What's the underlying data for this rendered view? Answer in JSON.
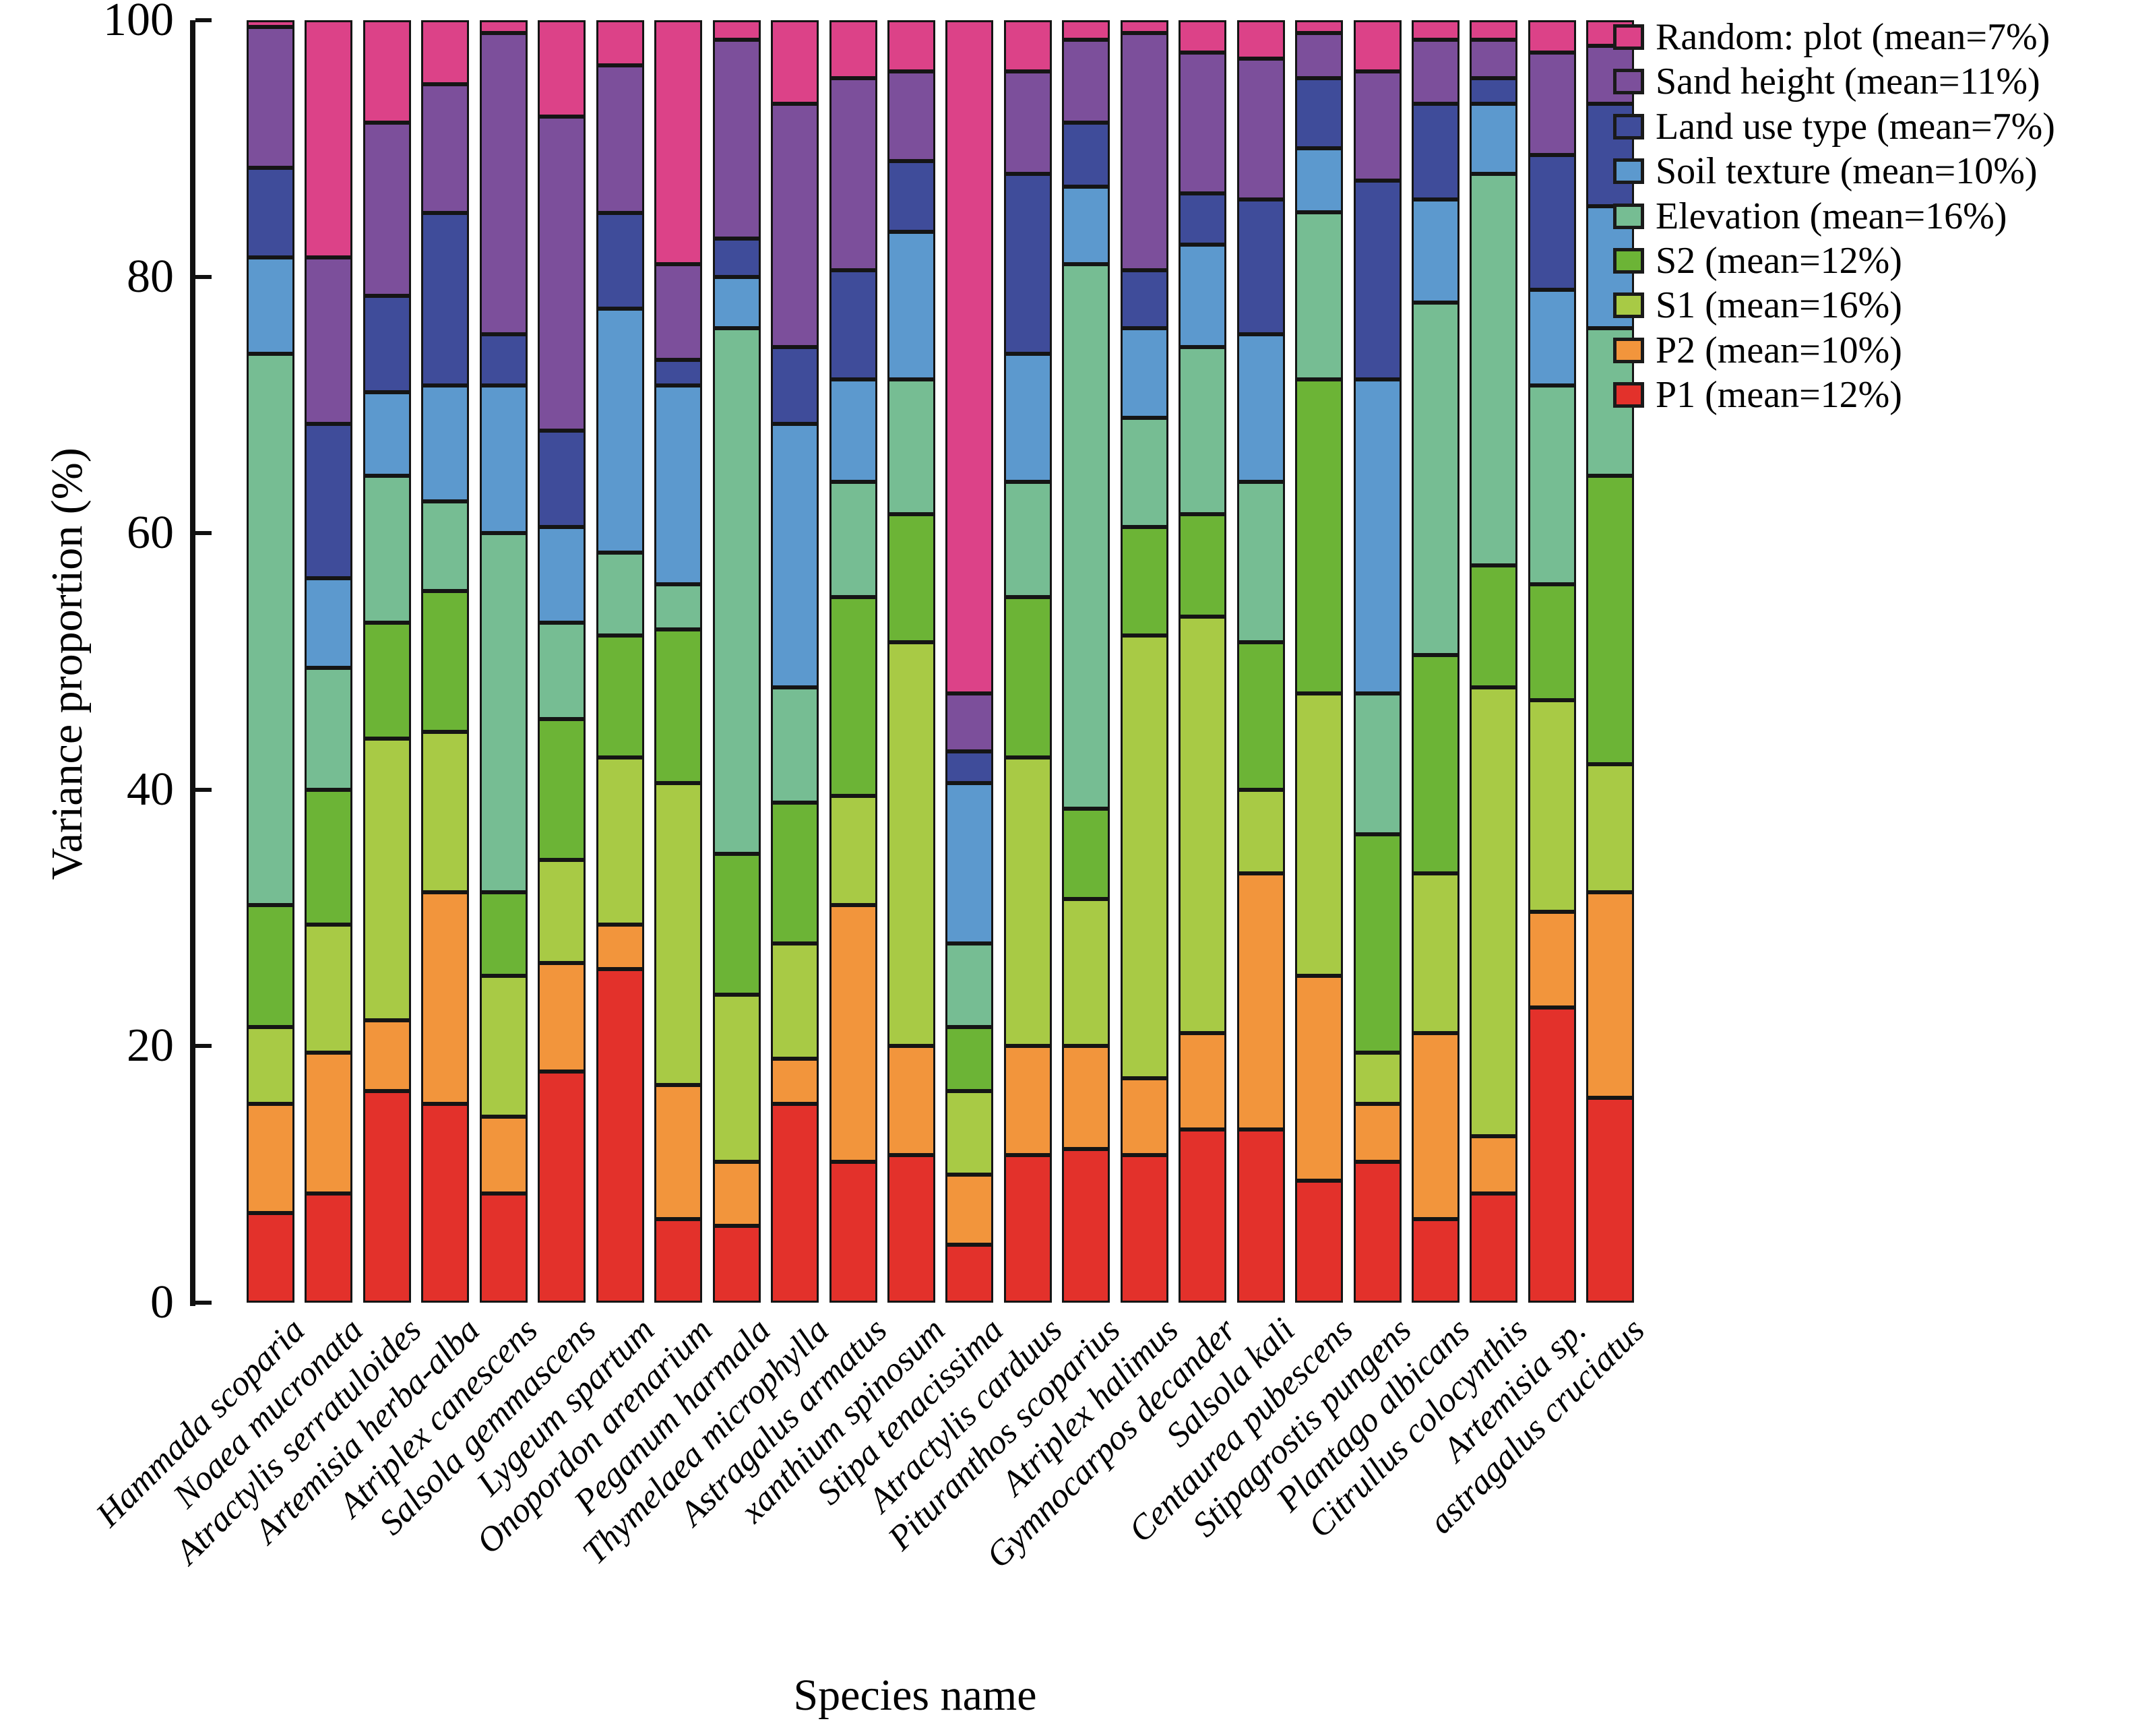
{
  "chart_data": {
    "type": "bar",
    "variant": "stacked-percentage",
    "orientation": "vertical",
    "title": "",
    "xlabel": "Species name",
    "ylabel": "Variance proportion (%)",
    "ylim": [
      0,
      100
    ],
    "yticks": [
      0,
      20,
      40,
      60,
      80,
      100
    ],
    "grid": false,
    "legend_position": "upper-right",
    "legend_order": "top-to-bottom is reverse of stacking order (Random: plot first, P1 last)",
    "colors": {
      "border": "#151515",
      "axis": "#111111",
      "text": "#000000",
      "background": "#ffffff"
    },
    "categories": [
      "Hammada scoparia",
      "Noaea mucronata",
      "Atractylis serratuloides",
      "Artemisia herba-alba",
      "Atriplex canescens",
      "Salsola gemmascens",
      "Lygeum spartum",
      "Onopordon arenarium",
      "Peganum harmala",
      "Thymelaea microphylla",
      "Astragalus armatus",
      "xanthium spinosum",
      "Stipa tenacissima",
      "Atractylis carduus",
      "Pituranthos scoparius",
      "Atriplex halimus",
      "Gymnocarpos decander",
      "Salsola kali",
      "Centaurea pubescens",
      "Stipagrostis pungens",
      "Plantago albicans",
      "Citrullus colocynthis",
      "Artemisia sp.",
      "astragalus cruciatus"
    ],
    "series_bottom_to_top": [
      {
        "name": "P1 (mean=12%)",
        "color": "#E3312B",
        "values": [
          7,
          8.5,
          16.5,
          15.5,
          8.5,
          18,
          26,
          6.5,
          6,
          15.5,
          11,
          11.5,
          4.5,
          11.5,
          12,
          11.5,
          13.5,
          13.5,
          9.5,
          11,
          6.5,
          8.5,
          23,
          16
        ]
      },
      {
        "name": "P2 (mean=10%)",
        "color": "#F2953C",
        "values": [
          8.5,
          11,
          5.5,
          16.5,
          6,
          8.5,
          3.5,
          10.5,
          5,
          3.5,
          20,
          8.5,
          5.5,
          8.5,
          8,
          6,
          7.5,
          20,
          16,
          4.5,
          14.5,
          4.5,
          7.5,
          16
        ]
      },
      {
        "name": "S1 (mean=16%)",
        "color": "#A8CA45",
        "values": [
          6,
          10,
          22,
          12.5,
          11,
          8,
          13,
          23.5,
          13,
          9,
          8.5,
          31.5,
          6.5,
          22.5,
          11.5,
          34.5,
          32.5,
          6.5,
          22,
          4,
          12.5,
          35,
          16.5,
          10
        ]
      },
      {
        "name": "S2 (mean=12%)",
        "color": "#6CB436",
        "values": [
          9.5,
          10.5,
          9,
          11,
          6.5,
          11,
          9.5,
          12,
          11,
          11,
          15.5,
          10,
          5,
          12.5,
          7,
          8.5,
          8,
          11.5,
          24.5,
          17,
          17,
          9.5,
          9,
          22.5
        ]
      },
      {
        "name": "Elevation (mean=16%)",
        "color": "#76BD93",
        "values": [
          43,
          9.5,
          11.5,
          7,
          28,
          7.5,
          6.5,
          3.5,
          41,
          9,
          9,
          10.5,
          6.5,
          9,
          42.5,
          8.5,
          13,
          12.5,
          13,
          11,
          27.5,
          30.5,
          15.5,
          11.5
        ]
      },
      {
        "name": "Soil texture (mean=10%)",
        "color": "#5C99CE",
        "values": [
          7.5,
          7,
          6.5,
          9,
          11.5,
          7.5,
          19,
          15.5,
          4,
          20.5,
          8,
          11.5,
          12.5,
          10,
          6,
          7,
          8,
          11.5,
          5,
          24.5,
          8,
          5.5,
          7.5,
          9.5
        ]
      },
      {
        "name": "Land use type (mean=7%)",
        "color": "#3F4C9A",
        "values": [
          7,
          12,
          7.5,
          13.5,
          4,
          7.5,
          7.5,
          2,
          3,
          6,
          8.5,
          5.5,
          2.5,
          14,
          5,
          4.5,
          4,
          10.5,
          5.5,
          15.5,
          7.5,
          2,
          10.5,
          8
        ]
      },
      {
        "name": "Sand height (mean=11%)",
        "color": "#7C4F9B",
        "values": [
          11,
          13,
          13.5,
          10,
          23.5,
          24.5,
          11.5,
          7.5,
          15.5,
          19,
          15,
          7,
          4.5,
          8,
          6.5,
          18.5,
          11,
          11,
          3.5,
          8.5,
          5,
          3,
          8,
          4.5
        ]
      },
      {
        "name": "Random: plot (mean=7%)",
        "color": "#DC4288",
        "values": [
          0.5,
          18.5,
          8,
          5,
          1,
          7.5,
          3.5,
          19,
          1.5,
          6.5,
          4.5,
          4,
          52.5,
          4,
          1.5,
          1,
          2.5,
          3,
          1,
          4,
          1.5,
          1.5,
          2.5,
          2
        ]
      }
    ]
  }
}
